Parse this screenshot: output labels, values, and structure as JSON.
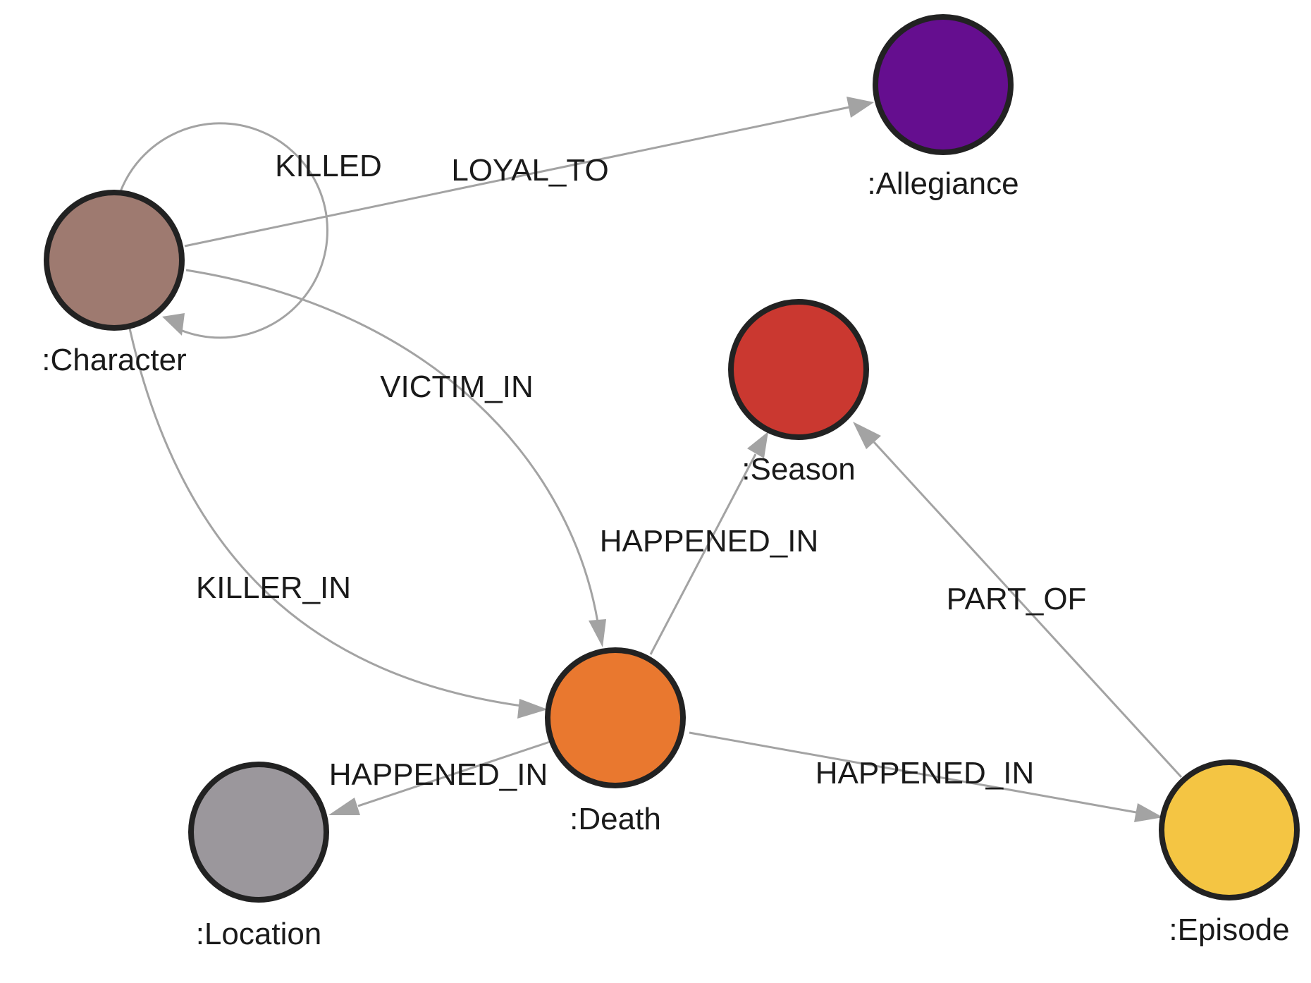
{
  "nodes": [
    {
      "id": "character",
      "label": ":Character",
      "color": "#9e7a70"
    },
    {
      "id": "allegiance",
      "label": ":Allegiance",
      "color": "#650e8f"
    },
    {
      "id": "season",
      "label": ":Season",
      "color": "#ca3830"
    },
    {
      "id": "death",
      "label": ":Death",
      "color": "#e9782f"
    },
    {
      "id": "location",
      "label": ":Location",
      "color": "#9b979c"
    },
    {
      "id": "episode",
      "label": ":Episode",
      "color": "#f4c543"
    }
  ],
  "edges": [
    {
      "id": "killed",
      "from": "character",
      "to": "character",
      "label": "KILLED"
    },
    {
      "id": "loyal-to",
      "from": "character",
      "to": "allegiance",
      "label": "LOYAL_TO"
    },
    {
      "id": "victim-in",
      "from": "character",
      "to": "death",
      "label": "VICTIM_IN"
    },
    {
      "id": "killer-in",
      "from": "character",
      "to": "death",
      "label": "KILLER_IN"
    },
    {
      "id": "happened-in-season",
      "from": "death",
      "to": "season",
      "label": "HAPPENED_IN"
    },
    {
      "id": "happened-in-location",
      "from": "death",
      "to": "location",
      "label": "HAPPENED_IN"
    },
    {
      "id": "happened-in-episode",
      "from": "death",
      "to": "episode",
      "label": "HAPPENED_IN"
    },
    {
      "id": "part-of",
      "from": "episode",
      "to": "season",
      "label": "PART_OF"
    }
  ]
}
